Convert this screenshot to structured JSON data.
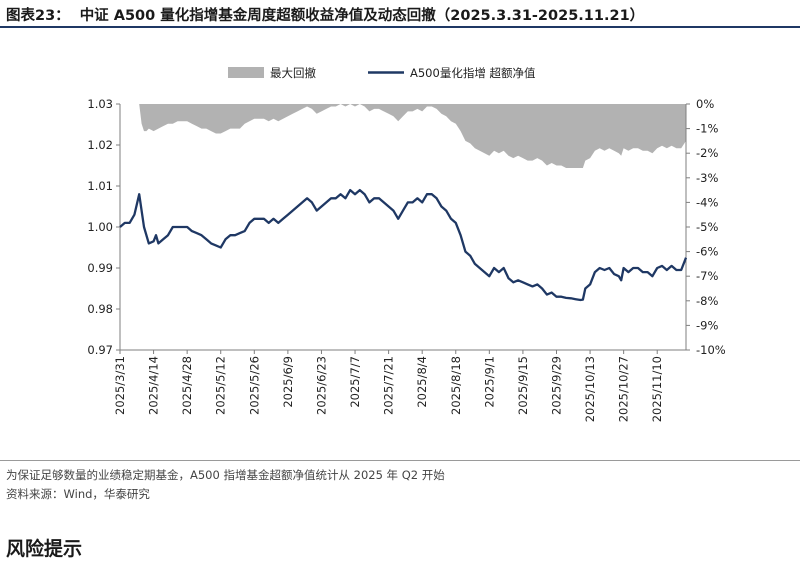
{
  "header": {
    "figure_label": "图表23：",
    "title": "中证 A500 量化指增基金周度超额收益净值及动态回撤（2025.3.31-2025.11.21）"
  },
  "chart_data": {
    "type": "line+area",
    "legend": {
      "placement": "top-center",
      "items": [
        {
          "name": "最大回撤",
          "kind": "area",
          "color": "#b2b2b2"
        },
        {
          "name": "A500量化指增 超额净值",
          "kind": "line",
          "color": "#1f3864"
        }
      ]
    },
    "left_axis": {
      "min": 0.97,
      "max": 1.03,
      "ticks": [
        "0.97",
        "0.98",
        "0.99",
        "1.00",
        "1.01",
        "1.02",
        "1.03"
      ]
    },
    "right_axis": {
      "min": -10,
      "max": 0,
      "unit": "%",
      "ticks": [
        "0%",
        "-1%",
        "-2%",
        "-3%",
        "-4%",
        "-5%",
        "-6%",
        "-7%",
        "-8%",
        "-9%",
        "-10%"
      ]
    },
    "x_tick_labels": [
      "2025/3/31",
      "2025/4/14",
      "2025/4/28",
      "2025/5/12",
      "2025/5/26",
      "2025/6/9",
      "2025/6/23",
      "2025/7/7",
      "2025/7/21",
      "2025/8/4",
      "2025/8/18",
      "2025/9/1",
      "2025/9/15",
      "2025/9/29",
      "2025/10/13",
      "2025/10/27",
      "2025/11/10"
    ],
    "x_tick_days": [
      0,
      14,
      28,
      42,
      56,
      70,
      84,
      98,
      112,
      126,
      140,
      154,
      168,
      182,
      196,
      210,
      224
    ],
    "x_range_days": [
      0,
      236
    ],
    "nav_series": {
      "name": "A500量化指增 超额净值",
      "points": [
        [
          0,
          1.0
        ],
        [
          2,
          1.001
        ],
        [
          4,
          1.001
        ],
        [
          6,
          1.003
        ],
        [
          8,
          1.008
        ],
        [
          10,
          1.0
        ],
        [
          12,
          0.996
        ],
        [
          14,
          0.9965
        ],
        [
          15,
          0.998
        ],
        [
          16,
          0.996
        ],
        [
          18,
          0.997
        ],
        [
          20,
          0.998
        ],
        [
          22,
          1.0
        ],
        [
          24,
          1.0
        ],
        [
          26,
          1.0
        ],
        [
          28,
          1.0
        ],
        [
          30,
          0.999
        ],
        [
          32,
          0.9985
        ],
        [
          34,
          0.998
        ],
        [
          36,
          0.997
        ],
        [
          38,
          0.996
        ],
        [
          40,
          0.9955
        ],
        [
          42,
          0.995
        ],
        [
          43,
          0.996
        ],
        [
          44,
          0.997
        ],
        [
          46,
          0.998
        ],
        [
          48,
          0.998
        ],
        [
          50,
          0.9985
        ],
        [
          52,
          0.999
        ],
        [
          54,
          1.001
        ],
        [
          56,
          1.002
        ],
        [
          58,
          1.002
        ],
        [
          60,
          1.002
        ],
        [
          62,
          1.001
        ],
        [
          64,
          1.002
        ],
        [
          66,
          1.001
        ],
        [
          68,
          1.002
        ],
        [
          70,
          1.003
        ],
        [
          72,
          1.004
        ],
        [
          74,
          1.005
        ],
        [
          76,
          1.006
        ],
        [
          78,
          1.007
        ],
        [
          80,
          1.006
        ],
        [
          82,
          1.004
        ],
        [
          84,
          1.005
        ],
        [
          86,
          1.006
        ],
        [
          88,
          1.007
        ],
        [
          90,
          1.007
        ],
        [
          92,
          1.008
        ],
        [
          94,
          1.007
        ],
        [
          96,
          1.009
        ],
        [
          98,
          1.008
        ],
        [
          100,
          1.009
        ],
        [
          102,
          1.008
        ],
        [
          104,
          1.006
        ],
        [
          106,
          1.007
        ],
        [
          108,
          1.007
        ],
        [
          110,
          1.006
        ],
        [
          112,
          1.005
        ],
        [
          114,
          1.004
        ],
        [
          116,
          1.002
        ],
        [
          118,
          1.004
        ],
        [
          120,
          1.006
        ],
        [
          122,
          1.006
        ],
        [
          124,
          1.007
        ],
        [
          126,
          1.006
        ],
        [
          128,
          1.008
        ],
        [
          130,
          1.008
        ],
        [
          132,
          1.007
        ],
        [
          134,
          1.005
        ],
        [
          136,
          1.004
        ],
        [
          138,
          1.002
        ],
        [
          140,
          1.001
        ],
        [
          142,
          0.998
        ],
        [
          144,
          0.994
        ],
        [
          146,
          0.993
        ],
        [
          148,
          0.991
        ],
        [
          150,
          0.99
        ],
        [
          152,
          0.989
        ],
        [
          154,
          0.988
        ],
        [
          156,
          0.99
        ],
        [
          158,
          0.989
        ],
        [
          160,
          0.99
        ],
        [
          162,
          0.9875
        ],
        [
          164,
          0.9865
        ],
        [
          166,
          0.987
        ],
        [
          168,
          0.9865
        ],
        [
          170,
          0.986
        ],
        [
          172,
          0.9855
        ],
        [
          174,
          0.986
        ],
        [
          176,
          0.985
        ],
        [
          178,
          0.9835
        ],
        [
          180,
          0.984
        ],
        [
          182,
          0.983
        ],
        [
          184,
          0.983
        ],
        [
          186,
          0.9827
        ],
        [
          188,
          0.9826
        ],
        [
          190,
          0.9824
        ],
        [
          192,
          0.9822
        ],
        [
          193,
          0.9823
        ],
        [
          194,
          0.985
        ],
        [
          196,
          0.986
        ],
        [
          198,
          0.989
        ],
        [
          200,
          0.99
        ],
        [
          202,
          0.9895
        ],
        [
          204,
          0.99
        ],
        [
          206,
          0.9885
        ],
        [
          208,
          0.988
        ],
        [
          209,
          0.987
        ],
        [
          210,
          0.99
        ],
        [
          212,
          0.989
        ],
        [
          214,
          0.99
        ],
        [
          216,
          0.99
        ],
        [
          218,
          0.989
        ],
        [
          220,
          0.989
        ],
        [
          222,
          0.988
        ],
        [
          224,
          0.99
        ],
        [
          226,
          0.9905
        ],
        [
          228,
          0.9895
        ],
        [
          230,
          0.9905
        ],
        [
          232,
          0.9895
        ],
        [
          234,
          0.9895
        ],
        [
          236,
          0.9925
        ]
      ]
    },
    "drawdown_series": {
      "name": "最大回撤",
      "unit": "%",
      "points": [
        [
          0,
          0
        ],
        [
          8,
          0
        ],
        [
          9,
          -0.8
        ],
        [
          10,
          -1.1
        ],
        [
          11,
          -1.1
        ],
        [
          12,
          -1.0
        ],
        [
          14,
          -1.1
        ],
        [
          16,
          -1.0
        ],
        [
          18,
          -0.9
        ],
        [
          20,
          -0.8
        ],
        [
          22,
          -0.8
        ],
        [
          24,
          -0.7
        ],
        [
          26,
          -0.7
        ],
        [
          28,
          -0.7
        ],
        [
          30,
          -0.8
        ],
        [
          32,
          -0.9
        ],
        [
          34,
          -1.0
        ],
        [
          36,
          -1.0
        ],
        [
          38,
          -1.1
        ],
        [
          40,
          -1.2
        ],
        [
          42,
          -1.2
        ],
        [
          44,
          -1.1
        ],
        [
          46,
          -1.0
        ],
        [
          48,
          -1.0
        ],
        [
          50,
          -1.0
        ],
        [
          52,
          -0.8
        ],
        [
          54,
          -0.7
        ],
        [
          56,
          -0.6
        ],
        [
          58,
          -0.6
        ],
        [
          60,
          -0.6
        ],
        [
          62,
          -0.7
        ],
        [
          64,
          -0.6
        ],
        [
          66,
          -0.7
        ],
        [
          68,
          -0.6
        ],
        [
          70,
          -0.5
        ],
        [
          72,
          -0.4
        ],
        [
          74,
          -0.3
        ],
        [
          76,
          -0.2
        ],
        [
          78,
          -0.1
        ],
        [
          80,
          -0.2
        ],
        [
          82,
          -0.4
        ],
        [
          84,
          -0.3
        ],
        [
          86,
          -0.2
        ],
        [
          88,
          -0.1
        ],
        [
          90,
          -0.1
        ],
        [
          92,
          0
        ],
        [
          94,
          -0.1
        ],
        [
          96,
          0
        ],
        [
          98,
          -0.1
        ],
        [
          100,
          0
        ],
        [
          102,
          -0.1
        ],
        [
          104,
          -0.3
        ],
        [
          106,
          -0.2
        ],
        [
          108,
          -0.2
        ],
        [
          110,
          -0.3
        ],
        [
          112,
          -0.4
        ],
        [
          114,
          -0.5
        ],
        [
          116,
          -0.7
        ],
        [
          118,
          -0.5
        ],
        [
          120,
          -0.3
        ],
        [
          122,
          -0.3
        ],
        [
          124,
          -0.2
        ],
        [
          126,
          -0.3
        ],
        [
          128,
          -0.1
        ],
        [
          130,
          -0.1
        ],
        [
          132,
          -0.2
        ],
        [
          134,
          -0.4
        ],
        [
          136,
          -0.5
        ],
        [
          138,
          -0.7
        ],
        [
          140,
          -0.8
        ],
        [
          142,
          -1.1
        ],
        [
          144,
          -1.5
        ],
        [
          146,
          -1.6
        ],
        [
          148,
          -1.8
        ],
        [
          150,
          -1.9
        ],
        [
          152,
          -2.0
        ],
        [
          154,
          -2.1
        ],
        [
          156,
          -1.9
        ],
        [
          158,
          -2.0
        ],
        [
          160,
          -1.9
        ],
        [
          162,
          -2.1
        ],
        [
          164,
          -2.2
        ],
        [
          166,
          -2.1
        ],
        [
          168,
          -2.2
        ],
        [
          170,
          -2.3
        ],
        [
          172,
          -2.3
        ],
        [
          174,
          -2.2
        ],
        [
          176,
          -2.3
        ],
        [
          178,
          -2.5
        ],
        [
          180,
          -2.4
        ],
        [
          182,
          -2.5
        ],
        [
          184,
          -2.5
        ],
        [
          186,
          -2.6
        ],
        [
          188,
          -2.6
        ],
        [
          190,
          -2.6
        ],
        [
          192,
          -2.6
        ],
        [
          193,
          -2.6
        ],
        [
          194,
          -2.3
        ],
        [
          196,
          -2.2
        ],
        [
          198,
          -1.9
        ],
        [
          200,
          -1.8
        ],
        [
          202,
          -1.9
        ],
        [
          204,
          -1.8
        ],
        [
          206,
          -1.9
        ],
        [
          208,
          -2.0
        ],
        [
          209,
          -2.1
        ],
        [
          210,
          -1.8
        ],
        [
          212,
          -1.9
        ],
        [
          214,
          -1.8
        ],
        [
          216,
          -1.8
        ],
        [
          218,
          -1.9
        ],
        [
          220,
          -1.9
        ],
        [
          222,
          -2.0
        ],
        [
          224,
          -1.8
        ],
        [
          226,
          -1.7
        ],
        [
          228,
          -1.8
        ],
        [
          230,
          -1.7
        ],
        [
          232,
          -1.8
        ],
        [
          234,
          -1.8
        ],
        [
          236,
          -1.5
        ]
      ]
    }
  },
  "notes": {
    "note1": "为保证足够数量的业绩稳定期基金，A500 指增基金超额净值统计从 2025 年 Q2 开始",
    "note2": "资料来源：Wind，华泰研究"
  },
  "section": {
    "heading": "风险提示"
  }
}
